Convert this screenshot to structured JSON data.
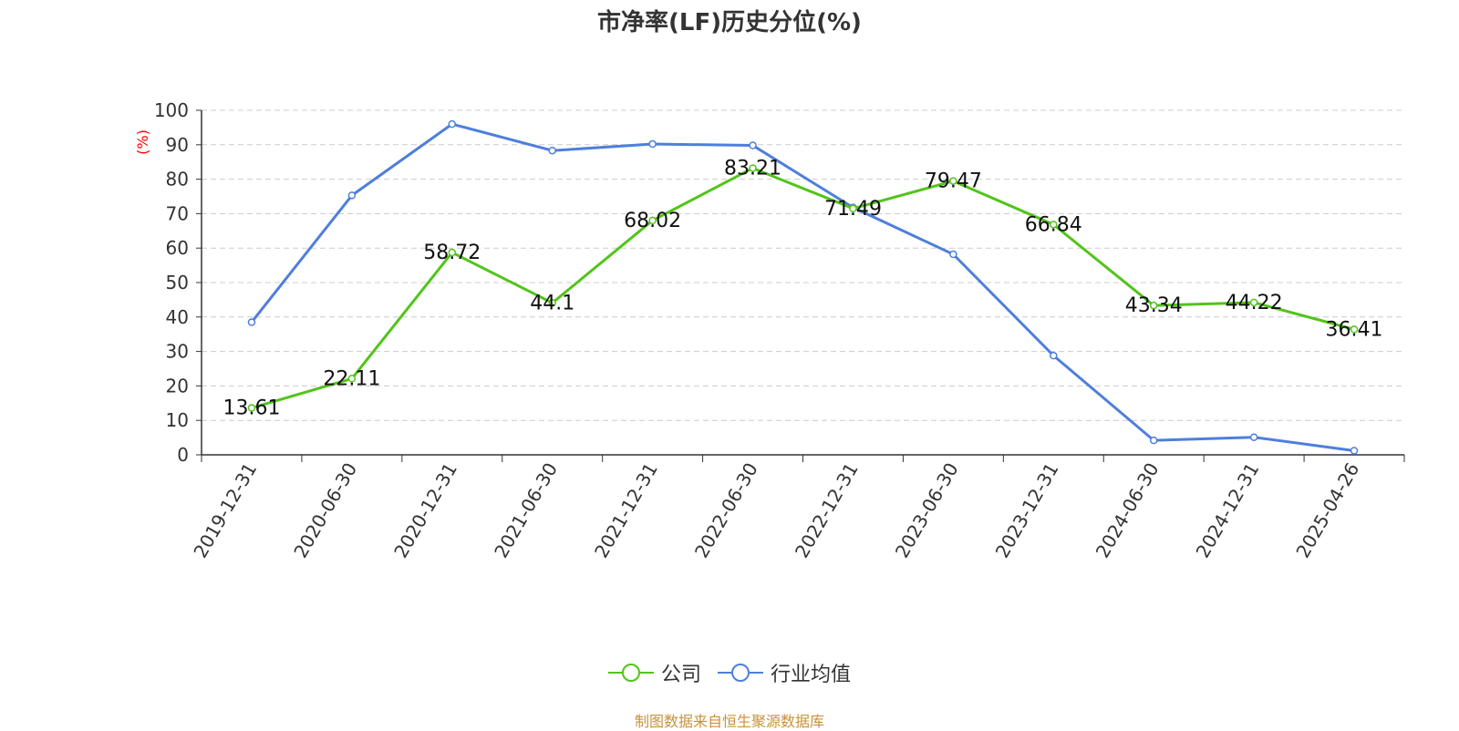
{
  "colors": {
    "company": "#52c41a",
    "industry": "#4e7fdb",
    "axis": "#333333",
    "grid": "#cccccc",
    "ylabel": "#ff0000",
    "footer": "#c8923a"
  },
  "chart_data": {
    "type": "line",
    "title": "市净率(LF)历史分位(%)",
    "ylabel": "(%)",
    "ylim": [
      0,
      100
    ],
    "yticks": [
      0,
      10,
      20,
      30,
      40,
      50,
      60,
      70,
      80,
      90,
      100
    ],
    "grid": true,
    "legend_position": "bottom",
    "categories": [
      "2019-12-31",
      "2020-06-30",
      "2020-12-31",
      "2021-06-30",
      "2021-12-31",
      "2022-06-30",
      "2022-12-31",
      "2023-06-30",
      "2023-12-31",
      "2024-06-30",
      "2024-12-31",
      "2025-04-26"
    ],
    "series": [
      {
        "name": "公司",
        "values": [
          13.61,
          22.11,
          58.72,
          44.1,
          68.02,
          83.21,
          71.49,
          79.47,
          66.84,
          43.34,
          44.22,
          36.41
        ],
        "labels": [
          "13.61",
          "22.11",
          "58.72",
          "44.1",
          "68.02",
          "83.21",
          "71.49",
          "79.47",
          "66.84",
          "43.34",
          "44.22",
          "36.41"
        ]
      },
      {
        "name": "行业均值",
        "values": [
          38.5,
          75.3,
          96.0,
          88.3,
          90.2,
          89.8,
          71.8,
          58.2,
          28.8,
          4.2,
          5.1,
          1.2
        ]
      }
    ]
  },
  "footer": {
    "source": "制图数据来自恒生聚源数据库"
  }
}
